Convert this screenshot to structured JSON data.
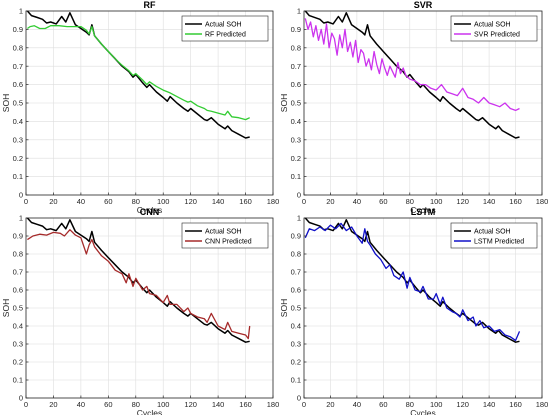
{
  "chart_data": [
    {
      "type": "line",
      "title": "RF",
      "xlabel": "Cycles",
      "ylabel": "SOH",
      "xlim": [
        0,
        180
      ],
      "ylim": [
        0,
        1
      ],
      "xticks": [
        0,
        20,
        40,
        60,
        80,
        100,
        120,
        140,
        160,
        180
      ],
      "yticks": [
        0,
        0.1,
        0.2,
        0.3,
        0.4,
        0.5,
        0.6,
        0.7,
        0.8,
        0.9,
        1
      ],
      "grid": true,
      "legend": "top-right",
      "series": [
        {
          "name": "Actual SOH",
          "color": "#000000",
          "x": [
            1,
            4,
            8,
            12,
            15,
            18,
            22,
            26,
            29,
            32,
            36,
            40,
            44,
            46,
            48,
            50,
            55,
            60,
            65,
            70,
            75,
            78,
            80,
            85,
            88,
            90,
            95,
            100,
            103,
            105,
            110,
            115,
            118,
            120,
            125,
            130,
            132,
            135,
            140,
            145,
            147,
            150,
            155,
            160,
            163
          ],
          "y": [
            1.0,
            0.975,
            0.965,
            0.955,
            0.935,
            0.94,
            0.93,
            0.97,
            0.94,
            0.99,
            0.925,
            0.905,
            0.885,
            0.87,
            0.925,
            0.865,
            0.82,
            0.78,
            0.74,
            0.7,
            0.67,
            0.64,
            0.655,
            0.61,
            0.585,
            0.6,
            0.56,
            0.53,
            0.51,
            0.535,
            0.5,
            0.47,
            0.455,
            0.47,
            0.44,
            0.41,
            0.405,
            0.42,
            0.385,
            0.36,
            0.375,
            0.35,
            0.33,
            0.31,
            0.315
          ]
        },
        {
          "name": "RF Predicted",
          "color": "#33cc33",
          "x": [
            1,
            3,
            6,
            10,
            14,
            18,
            24,
            30,
            35,
            40,
            44,
            46,
            48,
            50,
            55,
            60,
            65,
            70,
            75,
            78,
            80,
            85,
            88,
            90,
            95,
            100,
            105,
            110,
            115,
            118,
            120,
            125,
            130,
            132,
            135,
            140,
            145,
            147,
            150,
            155,
            160,
            163
          ],
          "y": [
            0.905,
            0.915,
            0.92,
            0.905,
            0.905,
            0.92,
            0.92,
            0.915,
            0.915,
            0.915,
            0.895,
            0.875,
            0.915,
            0.865,
            0.82,
            0.78,
            0.74,
            0.705,
            0.675,
            0.65,
            0.66,
            0.625,
            0.6,
            0.615,
            0.59,
            0.57,
            0.555,
            0.535,
            0.515,
            0.505,
            0.51,
            0.485,
            0.47,
            0.46,
            0.455,
            0.445,
            0.435,
            0.455,
            0.425,
            0.42,
            0.41,
            0.42
          ]
        }
      ]
    },
    {
      "type": "line",
      "title": "SVR",
      "xlabel": "Cycles",
      "ylabel": "SOH",
      "xlim": [
        0,
        180
      ],
      "ylim": [
        0,
        1
      ],
      "xticks": [
        0,
        20,
        40,
        60,
        80,
        100,
        120,
        140,
        160,
        180
      ],
      "yticks": [
        0,
        0.1,
        0.2,
        0.3,
        0.4,
        0.5,
        0.6,
        0.7,
        0.8,
        0.9,
        1
      ],
      "grid": true,
      "legend": "top-right",
      "series": [
        {
          "name": "Actual SOH",
          "color": "#000000",
          "x": [
            1,
            4,
            8,
            12,
            15,
            18,
            22,
            26,
            29,
            32,
            36,
            40,
            44,
            46,
            48,
            50,
            55,
            60,
            65,
            70,
            75,
            78,
            80,
            85,
            88,
            90,
            95,
            100,
            103,
            105,
            110,
            115,
            118,
            120,
            125,
            130,
            132,
            135,
            140,
            145,
            147,
            150,
            155,
            160,
            163
          ],
          "y": [
            1.0,
            0.975,
            0.965,
            0.955,
            0.935,
            0.94,
            0.93,
            0.97,
            0.94,
            0.99,
            0.925,
            0.905,
            0.885,
            0.87,
            0.925,
            0.865,
            0.82,
            0.78,
            0.74,
            0.7,
            0.67,
            0.64,
            0.655,
            0.61,
            0.585,
            0.6,
            0.56,
            0.53,
            0.51,
            0.535,
            0.5,
            0.47,
            0.455,
            0.47,
            0.44,
            0.41,
            0.405,
            0.42,
            0.385,
            0.36,
            0.375,
            0.35,
            0.33,
            0.31,
            0.315
          ]
        },
        {
          "name": "SVR Predicted",
          "color": "#cc33ee",
          "x": [
            1,
            3,
            5,
            7,
            9,
            11,
            13,
            15,
            17,
            19,
            21,
            23,
            25,
            27,
            29,
            31,
            33,
            35,
            37,
            39,
            41,
            43,
            45,
            47,
            49,
            51,
            53,
            55,
            57,
            59,
            61,
            63,
            65,
            67,
            69,
            71,
            73,
            75,
            77,
            80,
            84,
            88,
            92,
            96,
            100,
            104,
            108,
            112,
            116,
            120,
            124,
            128,
            132,
            136,
            140,
            144,
            148,
            152,
            156,
            160,
            163
          ],
          "y": [
            0.96,
            0.9,
            0.94,
            0.86,
            0.92,
            0.84,
            0.9,
            0.82,
            0.93,
            0.8,
            0.88,
            0.85,
            0.76,
            0.87,
            0.8,
            0.9,
            0.78,
            0.83,
            0.75,
            0.84,
            0.72,
            0.79,
            0.77,
            0.7,
            0.74,
            0.68,
            0.78,
            0.71,
            0.66,
            0.74,
            0.69,
            0.65,
            0.7,
            0.67,
            0.64,
            0.72,
            0.66,
            0.69,
            0.65,
            0.63,
            0.62,
            0.6,
            0.6,
            0.58,
            0.57,
            0.6,
            0.56,
            0.55,
            0.54,
            0.58,
            0.53,
            0.52,
            0.5,
            0.53,
            0.5,
            0.49,
            0.48,
            0.5,
            0.47,
            0.46,
            0.47
          ]
        }
      ]
    },
    {
      "type": "line",
      "title": "CNN",
      "xlabel": "Cycles",
      "ylabel": "SOH",
      "xlim": [
        0,
        180
      ],
      "ylim": [
        0,
        1
      ],
      "xticks": [
        0,
        20,
        40,
        60,
        80,
        100,
        120,
        140,
        160,
        180
      ],
      "yticks": [
        0,
        0.1,
        0.2,
        0.3,
        0.4,
        0.5,
        0.6,
        0.7,
        0.8,
        0.9,
        1
      ],
      "grid": true,
      "legend": "top-right",
      "series": [
        {
          "name": "Actual SOH",
          "color": "#000000",
          "x": [
            1,
            4,
            8,
            12,
            15,
            18,
            22,
            26,
            29,
            32,
            36,
            40,
            44,
            46,
            48,
            50,
            55,
            60,
            65,
            70,
            75,
            78,
            80,
            85,
            88,
            90,
            95,
            100,
            103,
            105,
            110,
            115,
            118,
            120,
            125,
            130,
            132,
            135,
            140,
            145,
            147,
            150,
            155,
            160,
            163
          ],
          "y": [
            1.0,
            0.975,
            0.965,
            0.955,
            0.935,
            0.94,
            0.93,
            0.97,
            0.94,
            0.99,
            0.925,
            0.905,
            0.885,
            0.87,
            0.925,
            0.865,
            0.82,
            0.78,
            0.74,
            0.7,
            0.67,
            0.64,
            0.655,
            0.61,
            0.585,
            0.6,
            0.56,
            0.53,
            0.51,
            0.535,
            0.5,
            0.47,
            0.455,
            0.47,
            0.44,
            0.41,
            0.405,
            0.42,
            0.385,
            0.36,
            0.375,
            0.35,
            0.33,
            0.31,
            0.315
          ]
        },
        {
          "name": "CNN Predicted",
          "color": "#a52a2a",
          "x": [
            1,
            5,
            10,
            15,
            20,
            25,
            28,
            32,
            36,
            40,
            44,
            46,
            48,
            50,
            55,
            60,
            65,
            70,
            73,
            75,
            78,
            80,
            85,
            88,
            90,
            95,
            100,
            103,
            105,
            110,
            115,
            118,
            120,
            125,
            130,
            132,
            135,
            140,
            145,
            147,
            150,
            155,
            160,
            162,
            163
          ],
          "y": [
            0.88,
            0.9,
            0.91,
            0.905,
            0.92,
            0.915,
            0.9,
            0.935,
            0.905,
            0.89,
            0.8,
            0.85,
            0.88,
            0.84,
            0.79,
            0.76,
            0.71,
            0.69,
            0.64,
            0.69,
            0.62,
            0.665,
            0.6,
            0.62,
            0.58,
            0.57,
            0.53,
            0.57,
            0.52,
            0.52,
            0.48,
            0.5,
            0.47,
            0.45,
            0.44,
            0.42,
            0.47,
            0.4,
            0.38,
            0.42,
            0.37,
            0.36,
            0.35,
            0.33,
            0.4
          ]
        }
      ]
    },
    {
      "type": "line",
      "title": "LSTM",
      "xlabel": "Cycles",
      "ylabel": "SOH",
      "xlim": [
        0,
        180
      ],
      "ylim": [
        0,
        1
      ],
      "xticks": [
        0,
        20,
        40,
        60,
        80,
        100,
        120,
        140,
        160,
        180
      ],
      "yticks": [
        0,
        0.1,
        0.2,
        0.3,
        0.4,
        0.5,
        0.6,
        0.7,
        0.8,
        0.9,
        1
      ],
      "grid": true,
      "legend": "top-right",
      "series": [
        {
          "name": "Actual SOH",
          "color": "#000000",
          "x": [
            1,
            4,
            8,
            12,
            15,
            18,
            22,
            26,
            29,
            32,
            36,
            40,
            44,
            46,
            48,
            50,
            55,
            60,
            65,
            70,
            75,
            78,
            80,
            85,
            88,
            90,
            95,
            100,
            103,
            105,
            110,
            115,
            118,
            120,
            125,
            130,
            132,
            135,
            140,
            145,
            147,
            150,
            155,
            160,
            163
          ],
          "y": [
            1.0,
            0.975,
            0.965,
            0.955,
            0.935,
            0.94,
            0.93,
            0.97,
            0.94,
            0.99,
            0.925,
            0.905,
            0.885,
            0.87,
            0.925,
            0.865,
            0.82,
            0.78,
            0.74,
            0.7,
            0.67,
            0.64,
            0.655,
            0.61,
            0.585,
            0.6,
            0.56,
            0.53,
            0.51,
            0.535,
            0.5,
            0.47,
            0.455,
            0.47,
            0.44,
            0.41,
            0.405,
            0.42,
            0.385,
            0.36,
            0.375,
            0.35,
            0.33,
            0.31,
            0.315
          ]
        },
        {
          "name": "LSTM Predicted",
          "color": "#1010c8",
          "x": [
            1,
            4,
            8,
            12,
            16,
            20,
            24,
            28,
            32,
            36,
            40,
            44,
            46,
            48,
            50,
            54,
            58,
            62,
            65,
            68,
            72,
            75,
            78,
            80,
            84,
            88,
            90,
            94,
            98,
            100,
            103,
            105,
            108,
            112,
            115,
            118,
            120,
            124,
            128,
            130,
            133,
            136,
            140,
            144,
            148,
            152,
            156,
            160,
            163
          ],
          "y": [
            0.89,
            0.94,
            0.93,
            0.95,
            0.93,
            0.96,
            0.94,
            0.97,
            0.93,
            0.95,
            0.9,
            0.86,
            0.94,
            0.87,
            0.85,
            0.8,
            0.77,
            0.72,
            0.74,
            0.68,
            0.66,
            0.7,
            0.61,
            0.67,
            0.6,
            0.59,
            0.62,
            0.55,
            0.55,
            0.58,
            0.52,
            0.56,
            0.5,
            0.48,
            0.47,
            0.45,
            0.49,
            0.43,
            0.45,
            0.4,
            0.43,
            0.39,
            0.4,
            0.37,
            0.38,
            0.35,
            0.34,
            0.32,
            0.37
          ]
        }
      ]
    }
  ]
}
